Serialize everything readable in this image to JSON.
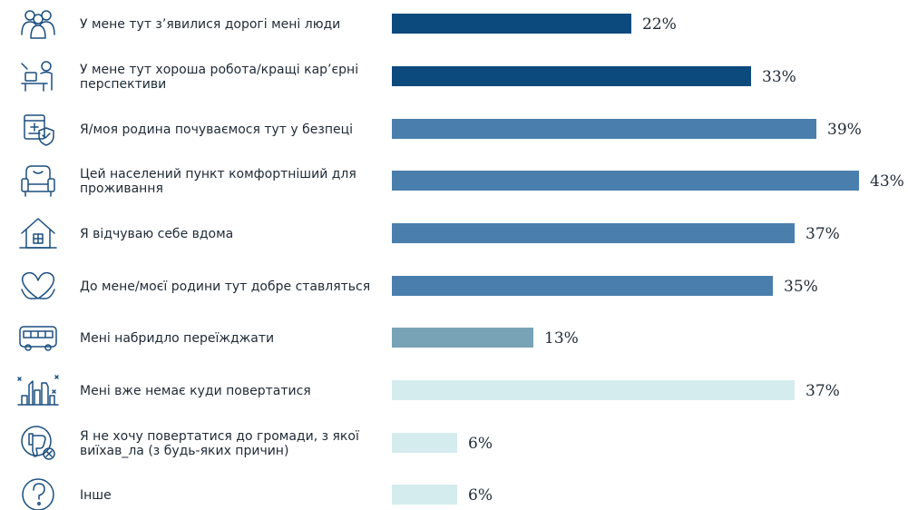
{
  "chart_data": {
    "type": "bar",
    "orientation": "horizontal",
    "value_suffix": "%",
    "categories": [
      [
        "У мене тут з’явилися дорогі мені люди"
      ],
      [
        "У мене тут хороша робота/кращі кар’єрні",
        "перспективи"
      ],
      [
        "Я/моя родина почуваємося тут у безпеці"
      ],
      [
        "Цей населений пункт комфортніший для",
        "проживання"
      ],
      [
        "Я відчуваю себе вдома"
      ],
      [
        "До мене/моєї родини тут добре ставляться"
      ],
      [
        "Мені набридло переїжджати"
      ],
      [
        "Мені вже немає куди повертатися"
      ],
      [
        "Я не хочу повертатися до громади, з якої",
        "виїхав_ла (з будь-яких причин)"
      ],
      [
        "Інше"
      ]
    ],
    "values": [
      22,
      33,
      39,
      43,
      37,
      35,
      13,
      37,
      6,
      6
    ],
    "value_labels": [
      "22%",
      "33%",
      "39%",
      "43%",
      "37%",
      "35%",
      "13%",
      "37%",
      "6%",
      "6%"
    ],
    "bar_colors": [
      "#0c4a7d",
      "#0c4a7d",
      "#4a7fad",
      "#4a7fad",
      "#4a7fad",
      "#4a7fad",
      "#78a3b7",
      "#d5ecef",
      "#d5ecef",
      "#d5ecef"
    ],
    "icons": [
      "people-icon",
      "desk-worker-icon",
      "medical-shield-icon",
      "armchair-icon",
      "house-icon",
      "hands-heart-icon",
      "bus-icon",
      "ruined-city-icon",
      "thumbs-down-icon",
      "question-icon"
    ],
    "title": "",
    "xlabel": "",
    "ylabel": "",
    "xlim": [
      0,
      43
    ],
    "grid": false,
    "legend": "none"
  }
}
